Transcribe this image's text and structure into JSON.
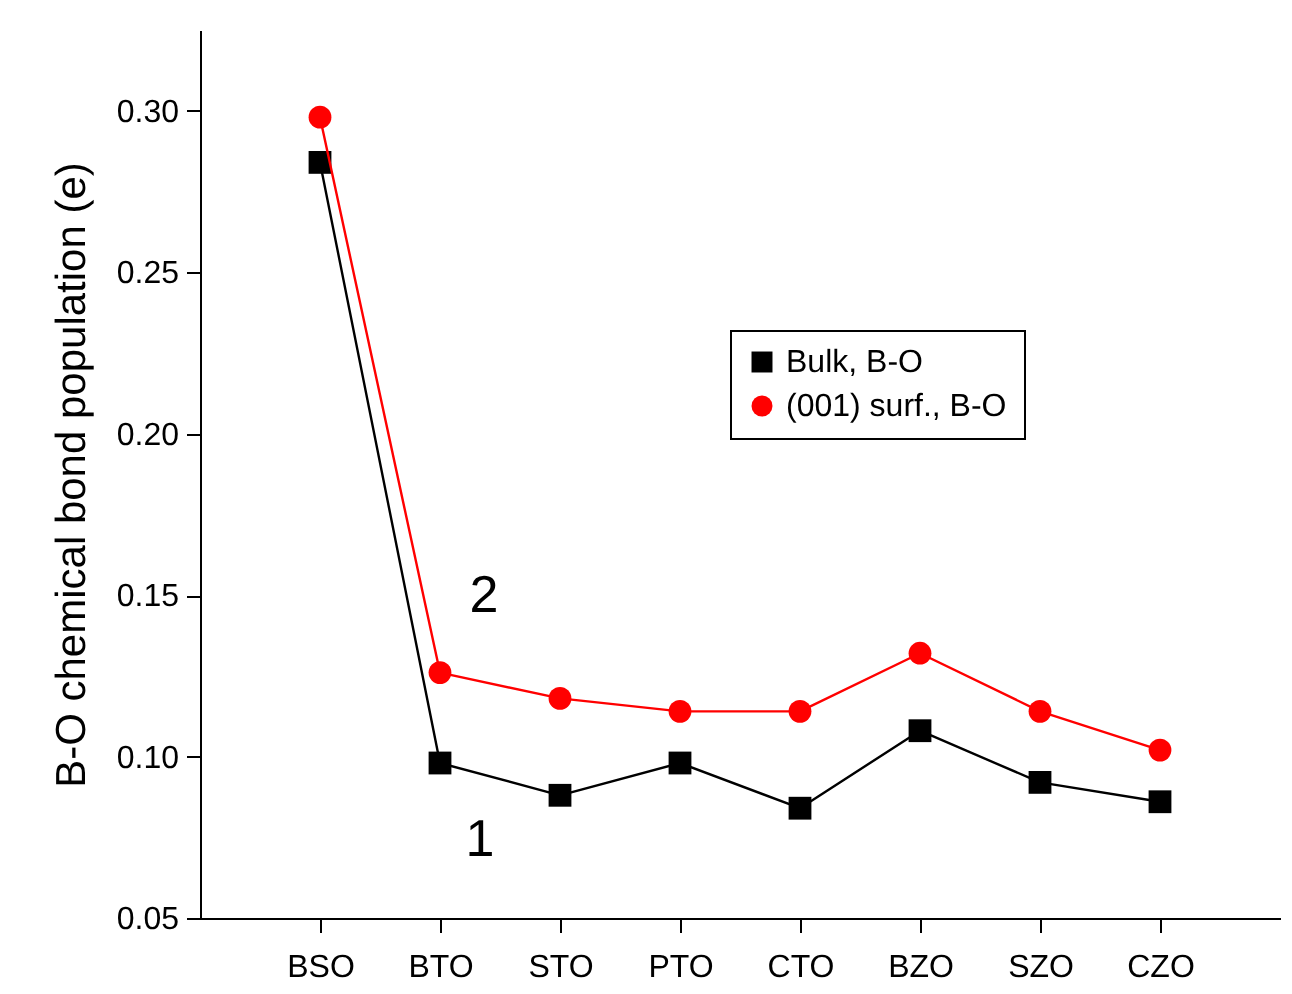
{
  "chart_data": {
    "type": "line",
    "ylabel": "B-O chemical bond population (e)",
    "categories": [
      "BSO",
      "BTO",
      "STO",
      "PTO",
      "CTO",
      "BZO",
      "SZO",
      "CZO"
    ],
    "series": [
      {
        "name": "Bulk, B-O",
        "color": "#000000",
        "marker": "square",
        "values": [
          0.284,
          0.098,
          0.088,
          0.098,
          0.084,
          0.108,
          0.092,
          0.086
        ]
      },
      {
        "name": "(001) surf., B-O",
        "color": "#ff0000",
        "marker": "circle",
        "values": [
          0.298,
          0.126,
          0.118,
          0.114,
          0.114,
          0.132,
          0.114,
          0.102
        ]
      }
    ],
    "ylim": [
      0.05,
      0.325
    ],
    "yticks": [
      {
        "value": 0.05,
        "label": "0.05"
      },
      {
        "value": 0.1,
        "label": "0.10"
      },
      {
        "value": 0.15,
        "label": "0.15"
      },
      {
        "value": 0.2,
        "label": "0.20"
      },
      {
        "value": 0.25,
        "label": "0.25"
      },
      {
        "value": 0.3,
        "label": "0.30"
      }
    ],
    "annotations": [
      "2",
      "1"
    ],
    "legend": "right",
    "grid": false,
    "line_style": "solid"
  }
}
